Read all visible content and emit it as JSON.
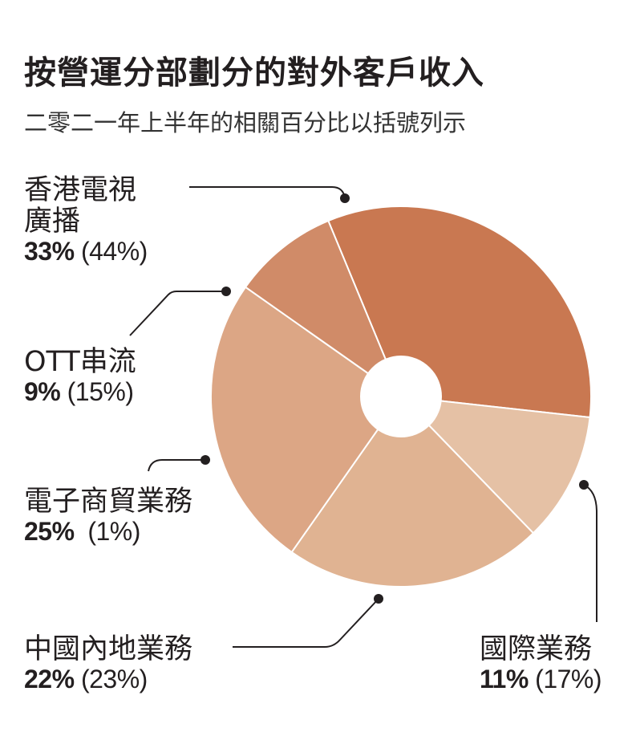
{
  "title": "按營運分部劃分的對外客戶收入",
  "subtitle": "二零二一年上半年的相關百分比以括號列示",
  "chart_data": {
    "type": "pie",
    "style": "donut",
    "title": "按營運分部劃分的對外客戶收入",
    "subtitle": "二零二一年上半年的相關百分比以括號列示",
    "slices": [
      {
        "id": "hk-tvb",
        "label": "香港電視\n廣播",
        "value": 33,
        "value_text": "33%",
        "prior_text": "(44%)",
        "color": "#c97851"
      },
      {
        "id": "international",
        "label": "國際業務",
        "value": 11,
        "value_text": "11%",
        "prior_text": "(17%)",
        "color": "#e5c1a5"
      },
      {
        "id": "mainland",
        "label": "中國內地業務",
        "value": 22,
        "value_text": "22%",
        "prior_text": "(23%)",
        "color": "#e0b392"
      },
      {
        "id": "ecommerce",
        "label": "電子商貿業務",
        "value": 25,
        "value_text": "25%",
        "prior_text": "(1%)",
        "color": "#dca685"
      },
      {
        "id": "ott",
        "label": "OTT串流",
        "value": 9,
        "value_text": "9%",
        "prior_text": "(15%)",
        "color": "#d08b68"
      }
    ]
  }
}
